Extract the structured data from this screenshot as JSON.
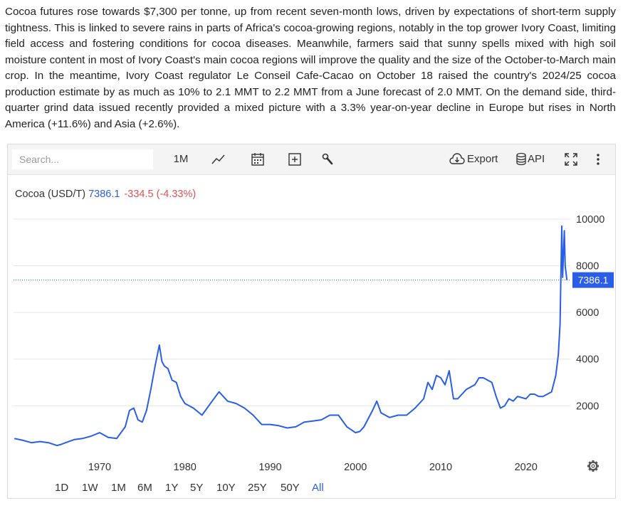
{
  "article": {
    "text": "Cocoa futures rose towards $7,300 per tonne, up from recent seven-month lows, driven by expectations of short-term supply tightness. This is linked to severe rains in parts of Africa's cocoa-growing regions, notably in the top grower Ivory Coast, limiting field access and fostering conditions for cocoa diseases. Meanwhile, farmers said that sunny spells mixed with high soil moisture content in most of Ivory Coast's main cocoa regions will improve the quality and the size of the October-to-March main crop. In the meantime, Ivory Coast regulator Le Conseil Cafe-Cacao on October 18 raised the country's 2024/25 cocoa production estimate by as much as 10% to 2.1 MMT to 2.2 MMT from a June forecast of 2.0 MMT. On the demand side, third-quarter grind data issued recently provided a mixed picture with a 3.3% year-on-year decline in Europe but rises in North America (+11.6%) and Asia (+2.6%)."
  },
  "toolbar": {
    "search_placeholder": "Search...",
    "interval_label": "1M",
    "export_label": "Export",
    "api_label": "API",
    "icons": [
      "line-chart-icon",
      "calendar-icon",
      "add-indicator-icon",
      "wrench-icon",
      "cloud-download-icon",
      "database-icon",
      "fullscreen-icon",
      "more-vertical-icon"
    ]
  },
  "quote": {
    "name": "Cocoa (USD/T)",
    "price": "7386.1",
    "change": "-334.5 (-4.33%)",
    "price_tag": "7386.1"
  },
  "colors": {
    "line": "#2a5ee8",
    "negative": "#e05252",
    "grid": "#e6e6e6"
  },
  "ranges": [
    {
      "label": "1D",
      "active": false
    },
    {
      "label": "1W",
      "active": false
    },
    {
      "label": "1M",
      "active": false
    },
    {
      "label": "6M",
      "active": false
    },
    {
      "label": "1Y",
      "active": false
    },
    {
      "label": "5Y",
      "active": false
    },
    {
      "label": "10Y",
      "active": false
    },
    {
      "label": "25Y",
      "active": false
    },
    {
      "label": "50Y",
      "active": false
    },
    {
      "label": "All",
      "active": true
    }
  ],
  "chart_data": {
    "type": "line",
    "title": "Cocoa (USD/T)",
    "xlabel": "",
    "ylabel": "",
    "x_ticks": [
      1970,
      1980,
      1990,
      2000,
      2010,
      2020
    ],
    "y_ticks": [
      2000,
      4000,
      6000,
      8000,
      10000
    ],
    "xlim": [
      1959.9,
      2025.2
    ],
    "ylim": [
      0,
      11000
    ],
    "grid": true,
    "last_value": 7386.1,
    "series": [
      {
        "x": [
          1960,
          1961,
          1962,
          1963,
          1964,
          1965,
          1965.5,
          1966,
          1967,
          1968,
          1969,
          1970,
          1971,
          1972,
          1973,
          1973.5,
          1974,
          1974.5,
          1975,
          1975.5,
          1976,
          1976.5,
          1977,
          1977.3,
          1977.6,
          1978,
          1978.5,
          1979,
          1979.5,
          1980,
          1981,
          1982,
          1983,
          1984,
          1984.5,
          1985,
          1986,
          1987,
          1988,
          1989,
          1990,
          1991,
          1992,
          1993,
          1994,
          1995,
          1996,
          1997,
          1998,
          1999,
          2000,
          2000.5,
          2001,
          2002,
          2002.5,
          2003,
          2004,
          2005,
          2006,
          2007,
          2008,
          2008.5,
          2009,
          2009.5,
          2010,
          2010.5,
          2011,
          2011.5,
          2012,
          2013,
          2014,
          2014.5,
          2015,
          2016,
          2016.5,
          2017,
          2017.5,
          2018,
          2018.5,
          2019,
          2020,
          2020.5,
          2021,
          2021.5,
          2022,
          2022.5,
          2023,
          2023.5,
          2023.8,
          2024,
          2024.2,
          2024.3,
          2024.5,
          2024.6,
          2024.8
        ],
        "values": [
          600,
          520,
          420,
          470,
          420,
          300,
          350,
          420,
          550,
          600,
          700,
          850,
          650,
          600,
          1100,
          1800,
          1900,
          1400,
          1300,
          1800,
          2700,
          3700,
          4600,
          3900,
          3700,
          3600,
          3100,
          3000,
          2400,
          2100,
          1900,
          1600,
          2100,
          2600,
          2400,
          2200,
          2100,
          1900,
          1600,
          1200,
          1200,
          1150,
          1050,
          1100,
          1300,
          1350,
          1400,
          1600,
          1600,
          1100,
          850,
          900,
          1100,
          1800,
          2200,
          1700,
          1500,
          1600,
          1600,
          1900,
          2300,
          3000,
          2700,
          3300,
          3200,
          2900,
          3500,
          2300,
          2300,
          2700,
          2900,
          3200,
          3200,
          3000,
          2400,
          1900,
          2000,
          2300,
          2200,
          2400,
          2300,
          2500,
          2500,
          2400,
          2400,
          2500,
          2600,
          3300,
          4200,
          5500,
          9700,
          7500,
          9500,
          8000,
          7386.1
        ]
      }
    ]
  }
}
